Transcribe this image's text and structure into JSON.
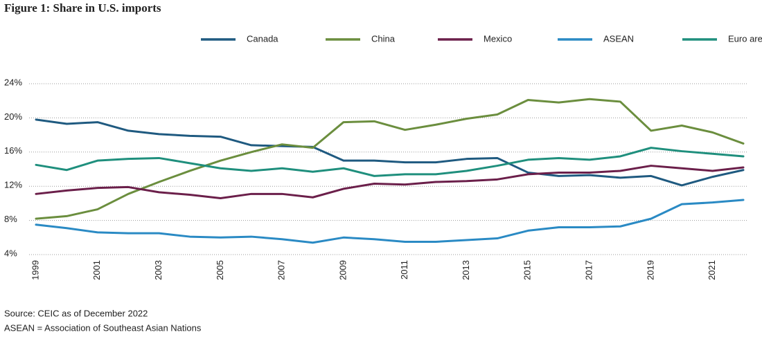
{
  "chart_data": {
    "type": "line",
    "title": "Figure 1: Share in U.S. imports",
    "source": "Source: CEIC as of December 2022",
    "note": "ASEAN = Association of Southeast Asian Nations",
    "categories": [
      "1999",
      null,
      "2001",
      null,
      "2003",
      null,
      "2005",
      null,
      "2007",
      null,
      "2009",
      null,
      "2011",
      null,
      "2013",
      null,
      "2015",
      null,
      "2017",
      null,
      "2019",
      null,
      "2021",
      null
    ],
    "series": [
      {
        "name": "Canada",
        "color": "#1f5a80",
        "values": [
          19.8,
          19.3,
          19.5,
          18.5,
          18.1,
          17.9,
          17.8,
          16.8,
          16.7,
          16.6,
          15.0,
          15.0,
          14.8,
          14.8,
          15.2,
          15.3,
          13.6,
          13.2,
          13.3,
          13.0,
          13.2,
          12.1,
          13.1,
          13.9
        ]
      },
      {
        "name": "China",
        "color": "#6b8e3e",
        "values": [
          8.2,
          8.5,
          9.3,
          11.1,
          12.5,
          13.8,
          15.0,
          16.0,
          16.9,
          16.5,
          19.5,
          19.6,
          18.6,
          19.2,
          19.9,
          20.4,
          22.1,
          21.8,
          22.2,
          21.9,
          18.5,
          19.1,
          18.3,
          17.0
        ]
      },
      {
        "name": "Mexico",
        "color": "#6b1f4a",
        "values": [
          11.1,
          11.5,
          11.8,
          11.9,
          11.3,
          11.0,
          10.6,
          11.1,
          11.1,
          10.7,
          11.7,
          12.3,
          12.2,
          12.5,
          12.6,
          12.8,
          13.4,
          13.6,
          13.6,
          13.8,
          14.4,
          14.1,
          13.8,
          14.2
        ]
      },
      {
        "name": "ASEAN",
        "color": "#2a8ac4",
        "values": [
          7.5,
          7.1,
          6.6,
          6.5,
          6.5,
          6.1,
          6.0,
          6.1,
          5.8,
          5.4,
          6.0,
          5.8,
          5.5,
          5.5,
          5.7,
          5.9,
          6.8,
          7.2,
          7.2,
          7.3,
          8.2,
          9.9,
          10.1,
          10.4
        ]
      },
      {
        "name": "Euro area",
        "color": "#1f8f7d",
        "values": [
          14.5,
          13.9,
          15.0,
          15.2,
          15.3,
          14.7,
          14.1,
          13.8,
          14.1,
          13.7,
          14.1,
          13.2,
          13.4,
          13.4,
          13.8,
          14.4,
          15.1,
          15.3,
          15.1,
          15.5,
          16.5,
          16.1,
          15.8,
          15.5
        ]
      }
    ],
    "ylim": [
      4,
      24
    ],
    "yticks": [
      {
        "value": 4,
        "label": "4%"
      },
      {
        "value": 8,
        "label": "8%"
      },
      {
        "value": 12,
        "label": "12%"
      },
      {
        "value": 16,
        "label": "16%"
      },
      {
        "value": 20,
        "label": "20%"
      },
      {
        "value": 24,
        "label": "24%"
      }
    ],
    "grid": true,
    "legend": "top"
  }
}
